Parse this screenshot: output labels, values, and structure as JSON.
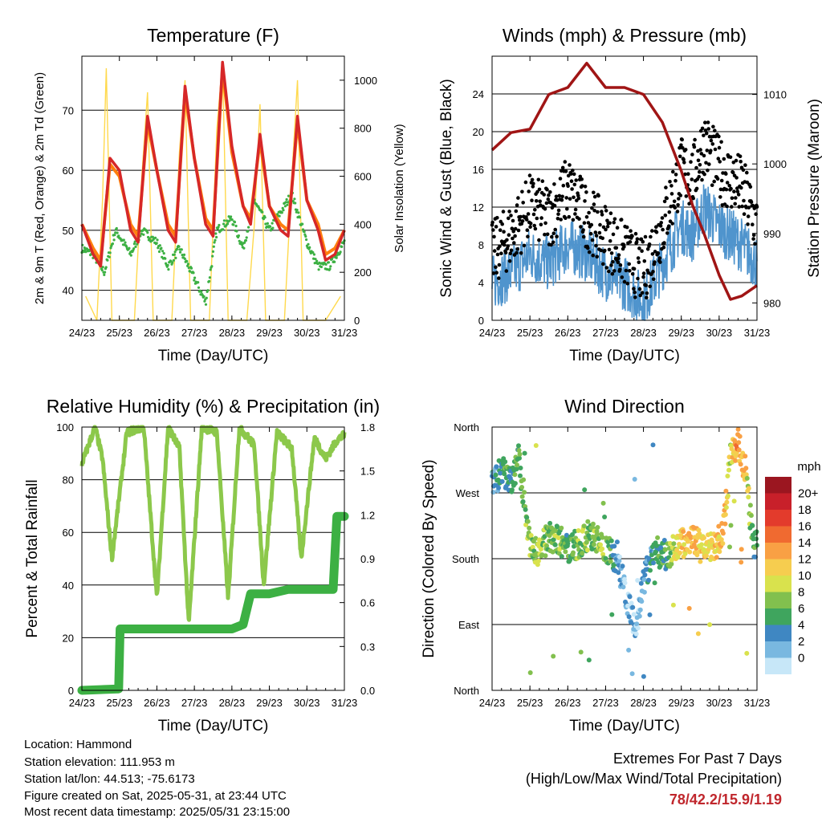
{
  "footer": {
    "location": "Location: Hammond",
    "elevation": "Station elevation: 111.953 m",
    "latlon": "Station lat/lon: 44.513; -75.6173",
    "created": "Figure created on Sat, 2025-05-31, at 23:44 UTC",
    "recent": "Most recent data timestamp: 2025/05/31 23:15:00"
  },
  "extremes": {
    "title": "Extremes For Past 7 Days",
    "subtitle": "(High/Low/Max Wind/Total Precipitation)",
    "values": "78/42.2/15.9/1.19",
    "color": "#c0272d"
  },
  "colors": {
    "temp_2m": "#d62728",
    "temp_9m": "#ff7f0e",
    "dewpoint": "#3cb043",
    "solar": "#ffd94d",
    "wind": "#4f94cd",
    "gust": "#000000",
    "pressure": "#a01515",
    "rh": "#8cc84b",
    "precip": "#3cb043"
  },
  "chart_data": [
    {
      "type": "line",
      "title": "Temperature (F)",
      "xlabel": "Time (Day/UTC)",
      "ylabel": "2m & 9m T (Red, Orange) & 2m Td (Green)",
      "y2label": "Solar Insolation (Yellow)",
      "x_ticks": [
        "24/23",
        "25/23",
        "26/23",
        "27/23",
        "28/23",
        "29/23",
        "30/23",
        "31/23"
      ],
      "ylim": [
        35,
        79
      ],
      "y_ticks": [
        40,
        50,
        60,
        70
      ],
      "y2lim": [
        0,
        1100
      ],
      "y2_ticks": [
        0,
        200,
        400,
        600,
        800,
        1000
      ],
      "grid": true,
      "series": [
        {
          "name": "2m T",
          "x": [
            0,
            0.3,
            0.5,
            0.75,
            1.0,
            1.3,
            1.5,
            1.75,
            2.0,
            2.3,
            2.5,
            2.75,
            3.0,
            3.3,
            3.5,
            3.75,
            4.0,
            4.3,
            4.5,
            4.75,
            5.0,
            5.3,
            5.5,
            5.75,
            6.0,
            6.3,
            6.5,
            6.75,
            7.0
          ],
          "y": [
            51,
            46,
            44,
            62,
            60,
            50,
            48,
            69,
            60,
            50,
            48,
            74,
            62,
            51,
            49,
            78,
            64,
            54,
            51,
            66,
            54,
            50,
            49,
            69,
            55,
            50,
            45,
            46,
            50
          ]
        },
        {
          "name": "9m T",
          "x": [
            0,
            0.3,
            0.5,
            0.75,
            1.0,
            1.3,
            1.5,
            1.75,
            2.0,
            2.3,
            2.5,
            2.75,
            3.0,
            3.3,
            3.5,
            3.75,
            4.0,
            4.3,
            4.5,
            4.75,
            5.0,
            5.3,
            5.5,
            5.75,
            6.0,
            6.3,
            6.5,
            6.75,
            7.0
          ],
          "y": [
            51,
            47,
            45,
            61,
            59,
            51,
            49,
            68,
            60,
            51,
            49,
            73,
            62,
            52,
            50,
            77,
            63,
            54,
            52,
            65,
            54,
            51,
            50,
            68,
            55,
            51,
            46,
            47,
            50
          ]
        },
        {
          "name": "2m Td",
          "x": [
            0,
            0.3,
            0.6,
            0.9,
            1.3,
            1.6,
            2.0,
            2.3,
            2.6,
            3.0,
            3.3,
            3.6,
            4.0,
            4.3,
            4.6,
            5.0,
            5.3,
            5.6,
            6.0,
            6.3,
            6.6,
            6.8,
            7.0
          ],
          "y": [
            47,
            46,
            43,
            50,
            46,
            50,
            48,
            44,
            47,
            42,
            38,
            50,
            52,
            47,
            55,
            50,
            53,
            56,
            48,
            44,
            44,
            46,
            48
          ]
        },
        {
          "name": "Solar",
          "x": [
            0.1,
            0.4,
            0.55,
            0.65,
            0.8,
            1.4,
            1.6,
            1.75,
            1.9,
            2.4,
            2.6,
            2.75,
            2.9,
            3.4,
            3.6,
            3.75,
            3.9,
            4.4,
            4.6,
            4.75,
            4.9,
            5.4,
            5.6,
            5.75,
            5.9,
            6.5,
            6.7,
            6.9
          ],
          "y": [
            100,
            0,
            500,
            1050,
            0,
            0,
            600,
            950,
            0,
            0,
            700,
            1000,
            0,
            0,
            800,
            1080,
            0,
            0,
            400,
            900,
            0,
            0,
            600,
            1000,
            0,
            0,
            50,
            100
          ]
        }
      ]
    },
    {
      "type": "scatter",
      "title": "Winds (mph) & Pressure (mb)",
      "xlabel": "Time (Day/UTC)",
      "ylabel": "Sonic Wind & Gust (Blue, Black)",
      "y2label": "Station Pressure (Maroon)",
      "x_ticks": [
        "24/23",
        "25/23",
        "26/23",
        "27/23",
        "28/23",
        "29/23",
        "30/23",
        "31/23"
      ],
      "ylim": [
        0,
        28
      ],
      "y_ticks": [
        0,
        4,
        8,
        12,
        16,
        20,
        24
      ],
      "y2lim": [
        977.5,
        1015.5
      ],
      "y2_ticks": [
        980,
        990,
        1000,
        1010
      ],
      "grid": true,
      "series": [
        {
          "name": "Wind",
          "x": [
            0,
            0.5,
            1.0,
            1.5,
            2.0,
            2.5,
            3.0,
            3.5,
            4.0,
            4.5,
            5.0,
            5.3,
            5.6,
            6.0,
            6.3,
            6.6,
            7.0
          ],
          "y": [
            4,
            5,
            7,
            6,
            8,
            7,
            5,
            4,
            2,
            6,
            10,
            9,
            12,
            10,
            9,
            8,
            6
          ]
        },
        {
          "name": "Gust",
          "x": [
            0,
            0.5,
            1.0,
            1.5,
            2.0,
            2.5,
            3.0,
            3.5,
            4.0,
            4.5,
            5.0,
            5.3,
            5.6,
            6.0,
            6.3,
            6.6,
            7.0
          ],
          "y": [
            7,
            9,
            12,
            11,
            14,
            11,
            9,
            7,
            5,
            10,
            16,
            15,
            19,
            16,
            15,
            14,
            10
          ]
        },
        {
          "name": "Pressure",
          "x": [
            0,
            0.5,
            1.0,
            1.5,
            2.0,
            2.5,
            3.0,
            3.5,
            4.0,
            4.5,
            5.0,
            5.3,
            5.6,
            6.0,
            6.3,
            6.6,
            7.0
          ],
          "y": [
            1002,
            1004.5,
            1005,
            1010,
            1011,
            1014.5,
            1011,
            1011,
            1010,
            1006,
            999,
            994,
            990,
            984,
            980.5,
            981,
            982.5
          ]
        }
      ]
    },
    {
      "type": "line",
      "title": "Relative Humidity (%) & Precipitation (in)",
      "xlabel": "Time (Day/UTC)",
      "ylabel": "Percent & Total Rainfall",
      "x_ticks": [
        "24/23",
        "25/23",
        "26/23",
        "27/23",
        "28/23",
        "29/23",
        "30/23",
        "31/23"
      ],
      "ylim": [
        0,
        100
      ],
      "y_ticks": [
        0,
        20,
        40,
        60,
        80,
        100
      ],
      "y2lim": [
        0,
        1.8
      ],
      "y2_ticks": [
        "0.0",
        "0.3",
        "0.6",
        "0.9",
        "1.2",
        "1.5",
        "1.8"
      ],
      "grid": true,
      "series": [
        {
          "name": "RH",
          "x": [
            0,
            0.35,
            0.55,
            0.8,
            1.2,
            1.65,
            2.0,
            2.3,
            2.6,
            2.85,
            3.2,
            3.6,
            3.9,
            4.2,
            4.6,
            4.85,
            5.2,
            5.6,
            5.85,
            6.2,
            6.5,
            6.8,
            7.0
          ],
          "y": [
            86,
            100,
            88,
            50,
            98,
            100,
            35,
            100,
            92,
            25,
            100,
            98,
            35,
            100,
            93,
            40,
            98,
            92,
            50,
            96,
            88,
            95,
            97
          ]
        },
        {
          "name": "Precip",
          "x": [
            0,
            0.98,
            1.02,
            2.0,
            3.0,
            4.0,
            4.3,
            4.5,
            5.0,
            5.5,
            6.0,
            6.5,
            6.7,
            6.8,
            7.0
          ],
          "y": [
            0,
            0.01,
            0.42,
            0.42,
            0.42,
            0.42,
            0.45,
            0.66,
            0.66,
            0.69,
            0.69,
            0.69,
            0.69,
            1.19,
            1.19
          ]
        }
      ]
    },
    {
      "type": "scatter",
      "title": "Wind Direction",
      "xlabel": "Time (Day/UTC)",
      "ylabel": "Direction (Colored By Speed)",
      "x_ticks": [
        "24/23",
        "25/23",
        "26/23",
        "27/23",
        "28/23",
        "29/23",
        "30/23",
        "31/23"
      ],
      "y_ticks": [
        "North",
        "East",
        "South",
        "West",
        "North"
      ],
      "ylim": [
        0,
        360
      ],
      "grid": true,
      "legend_title": "mph",
      "legend_labels": [
        "20+",
        "18",
        "16",
        "14",
        "12",
        "10",
        "8",
        "6",
        "4",
        "2",
        "0"
      ],
      "legend_colors": [
        "#9b1620",
        "#c8202a",
        "#e33b2c",
        "#f06a30",
        "#f9a044",
        "#f6cd4f",
        "#d9e24d",
        "#82c04e",
        "#3fa55e",
        "#3f87c2",
        "#79b8e0",
        "#c7e7f8"
      ],
      "legend_position": "right",
      "series": [
        {
          "name": "Direction",
          "x": [
            0.1,
            0.3,
            0.5,
            0.7,
            1.0,
            1.2,
            1.5,
            1.8,
            2.0,
            2.3,
            2.6,
            2.9,
            3.3,
            3.6,
            3.8,
            4.0,
            4.3,
            4.6,
            5.0,
            5.3,
            5.6,
            5.9,
            6.1,
            6.3,
            6.5,
            6.7,
            6.9
          ],
          "y": [
            290,
            300,
            280,
            320,
            200,
            190,
            210,
            205,
            195,
            200,
            215,
            200,
            180,
            120,
            80,
            150,
            190,
            185,
            200,
            205,
            195,
            200,
            210,
            320,
            340,
            300,
            200
          ],
          "speed": [
            4,
            6,
            5,
            7,
            8,
            9,
            7,
            8,
            6,
            8,
            7,
            9,
            3,
            2,
            1,
            3,
            5,
            6,
            12,
            14,
            11,
            12,
            13,
            10,
            15,
            12,
            6
          ]
        }
      ]
    }
  ]
}
